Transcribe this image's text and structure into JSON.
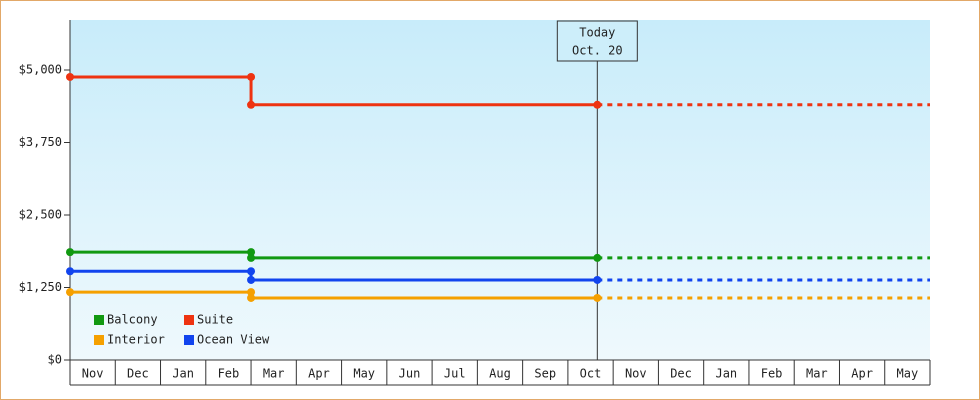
{
  "chart_data": {
    "type": "line",
    "categories": [
      "Nov",
      "Dec",
      "Jan",
      "Feb",
      "Mar",
      "Apr",
      "May",
      "Jun",
      "Jul",
      "Aug",
      "Sep",
      "Oct",
      "Nov",
      "Dec",
      "Jan",
      "Feb",
      "Mar",
      "Apr",
      "May"
    ],
    "x": [
      0,
      4,
      4,
      11.65
    ],
    "xlim": [
      0,
      19
    ],
    "series": [
      {
        "name": "Balcony",
        "color": "#119911",
        "values": [
          1860,
          1860,
          1760,
          1760
        ]
      },
      {
        "name": "Suite",
        "color": "#ee3311",
        "values": [
          4880,
          4880,
          4400,
          4400
        ]
      },
      {
        "name": "Interior",
        "color": "#f5a000",
        "values": [
          1170,
          1170,
          1070,
          1070
        ]
      },
      {
        "name": "Ocean View",
        "color": "#1144ee",
        "values": [
          1530,
          1530,
          1380,
          1380
        ]
      }
    ],
    "ylim": [
      0,
      5862
    ],
    "yticks": [
      {
        "value": 0,
        "label": "$0"
      },
      {
        "value": 1250,
        "label": "$1,250"
      },
      {
        "value": 2500,
        "label": "$2,500"
      },
      {
        "value": 3750,
        "label": "$3,750"
      },
      {
        "value": 5000,
        "label": "$5,000"
      }
    ],
    "annotation": {
      "text": [
        "Today",
        "Oct. 20"
      ],
      "x": 11.65
    },
    "legend": "bottom-left"
  }
}
